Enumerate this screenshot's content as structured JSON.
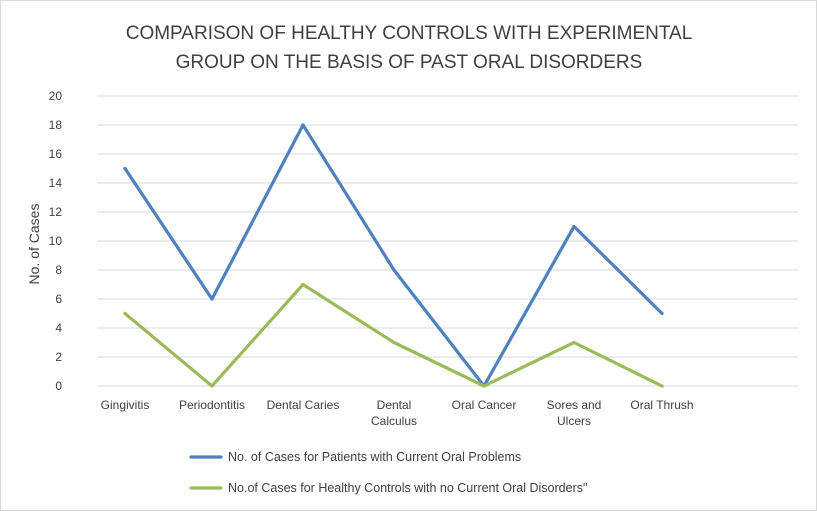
{
  "chart_data": {
    "type": "line",
    "title": [
      "COMPARISON OF HEALTHY CONTROLS WITH EXPERIMENTAL",
      "GROUP  ON THE BASIS OF PAST ORAL DISORDERS"
    ],
    "ylabel": "No. of Cases",
    "xlabel": "",
    "ylim": [
      0,
      20
    ],
    "yticks": [
      0,
      2,
      4,
      6,
      8,
      10,
      12,
      14,
      16,
      18,
      20
    ],
    "grid": true,
    "legend_position": "bottom",
    "categories": [
      [
        "Gingivitis"
      ],
      [
        "Periodontitis"
      ],
      [
        "Dental  Caries"
      ],
      [
        "Dental",
        "Calculus"
      ],
      [
        "Oral Cancer"
      ],
      [
        "Sores and",
        "Ulcers"
      ],
      [
        "Oral Thrush"
      ]
    ],
    "series": [
      {
        "name": "No. of Cases for Patients with Current Oral Problems",
        "color": "#4f81bd",
        "values": [
          15,
          6,
          18,
          8,
          0,
          11,
          5
        ]
      },
      {
        "name": "No.of Cases for Healthy Controls with no Current Oral Disorders\"",
        "color": "#9bbb59",
        "values": [
          5,
          0,
          7,
          3,
          0,
          3,
          0
        ]
      }
    ]
  }
}
